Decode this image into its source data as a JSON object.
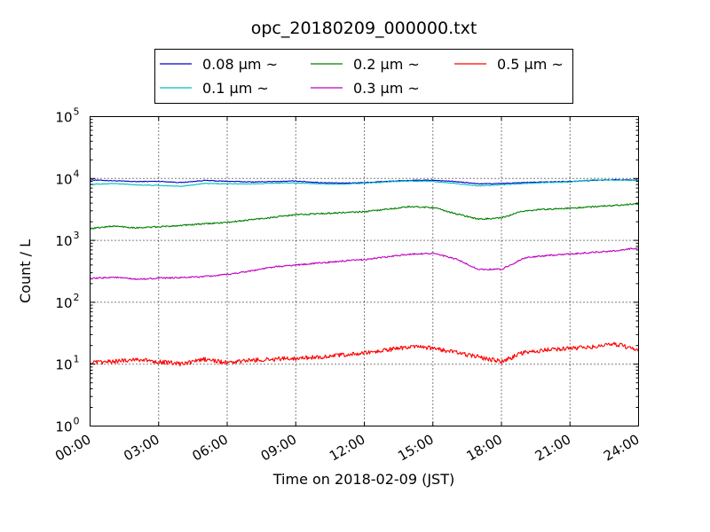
{
  "chart_data": {
    "type": "line",
    "title": "opc_20180209_000000.txt",
    "xlabel": "Time on 2018-02-09 (JST)",
    "ylabel": "Count / L",
    "yscale": "log",
    "ylim": [
      1,
      100000
    ],
    "y_ticks": [
      {
        "base": "10",
        "exp": "0",
        "value": 1
      },
      {
        "base": "10",
        "exp": "1",
        "value": 10
      },
      {
        "base": "10",
        "exp": "2",
        "value": 100
      },
      {
        "base": "10",
        "exp": "3",
        "value": 1000
      },
      {
        "base": "10",
        "exp": "4",
        "value": 10000
      },
      {
        "base": "10",
        "exp": "5",
        "value": 100000
      }
    ],
    "x_ticks": [
      "00:00",
      "03:00",
      "06:00",
      "09:00",
      "12:00",
      "15:00",
      "18:00",
      "21:00",
      "24:00"
    ],
    "xlim_hours": [
      0,
      24
    ],
    "grid": true,
    "legend": "top, outside plot, 3 columns",
    "series": [
      {
        "name": "0.08 μm ~",
        "color": "#0000cc",
        "x": [
          0,
          1,
          2,
          3,
          4,
          5,
          6,
          7,
          8,
          9,
          10,
          11,
          12,
          13,
          14,
          15,
          16,
          17,
          18,
          19,
          20,
          21,
          22,
          23,
          24
        ],
        "values": [
          9500,
          9200,
          8900,
          9000,
          8600,
          9300,
          9000,
          8800,
          8900,
          9100,
          8600,
          8400,
          8600,
          9000,
          9300,
          9400,
          8900,
          8200,
          8300,
          8600,
          8800,
          9000,
          9300,
          9600,
          9400
        ]
      },
      {
        "name": "0.1 μm ~",
        "color": "#00bfbf",
        "x": [
          0,
          1,
          2,
          3,
          4,
          5,
          6,
          7,
          8,
          9,
          10,
          11,
          12,
          13,
          14,
          15,
          16,
          17,
          18,
          19,
          20,
          21,
          22,
          23,
          24
        ],
        "values": [
          8000,
          8300,
          7900,
          7700,
          7500,
          8300,
          8200,
          8200,
          8400,
          8500,
          8200,
          8100,
          8400,
          8800,
          9100,
          9000,
          8300,
          7600,
          7900,
          8300,
          8600,
          8800,
          9500,
          9400,
          9300
        ]
      },
      {
        "name": "0.2 μm ~",
        "color": "#008000",
        "x": [
          0,
          1,
          2,
          3,
          4,
          5,
          6,
          7,
          8,
          9,
          10,
          11,
          12,
          13,
          14,
          15,
          16,
          17,
          18,
          19,
          20,
          21,
          22,
          23,
          24
        ],
        "values": [
          1550,
          1700,
          1600,
          1650,
          1750,
          1850,
          1950,
          2150,
          2350,
          2600,
          2700,
          2800,
          2900,
          3200,
          3500,
          3400,
          2700,
          2200,
          2300,
          3000,
          3200,
          3300,
          3500,
          3700,
          3900
        ]
      },
      {
        "name": "0.3 μm ~",
        "color": "#bf00bf",
        "x": [
          0,
          1,
          2,
          3,
          4,
          5,
          6,
          7,
          8,
          9,
          10,
          11,
          12,
          13,
          14,
          15,
          16,
          17,
          18,
          19,
          20,
          21,
          22,
          23,
          24
        ],
        "values": [
          240,
          255,
          235,
          245,
          250,
          260,
          280,
          320,
          370,
          400,
          430,
          460,
          490,
          540,
          600,
          620,
          500,
          340,
          340,
          520,
          570,
          600,
          640,
          680,
          760
        ]
      },
      {
        "name": "0.5 μm ~",
        "color": "#ff0000",
        "x": [
          0,
          1,
          2,
          3,
          4,
          5,
          6,
          7,
          8,
          9,
          10,
          11,
          12,
          13,
          14,
          15,
          16,
          17,
          18,
          19,
          20,
          21,
          22,
          23,
          24
        ],
        "values": [
          10.5,
          11,
          12,
          11,
          10,
          12,
          10.5,
          11.5,
          12,
          12.5,
          13,
          14,
          15,
          17,
          19,
          18,
          15.5,
          13,
          11,
          15.5,
          17,
          18,
          19,
          21,
          17
        ]
      }
    ]
  }
}
